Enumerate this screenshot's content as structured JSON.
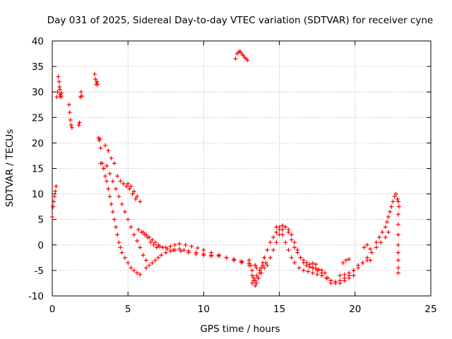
{
  "chart_data": {
    "type": "scatter",
    "title": "Day 031 of 2025, Sidereal Day-to-day VTEC variation (SDTVAR) for receiver cyne",
    "xlabel": "GPS time / hours",
    "ylabel": "SDTVAR / TECUs",
    "xlim": [
      0,
      25
    ],
    "ylim": [
      -10,
      40
    ],
    "xticks": [
      0,
      5,
      10,
      15,
      20,
      25
    ],
    "yticks": [
      -10,
      -5,
      0,
      5,
      10,
      15,
      20,
      25,
      30,
      35,
      40
    ],
    "grid": true,
    "marker": "+",
    "series": [
      {
        "name": "SDTVAR",
        "color": "#ff0000",
        "x": [
          0.0,
          0.05,
          0.1,
          0.15,
          0.2,
          0.25,
          0.3,
          0.35,
          0.4,
          0.45,
          0.48,
          0.5,
          0.52,
          0.55,
          0.58,
          0.6,
          1.1,
          1.15,
          1.2,
          1.25,
          1.3,
          1.75,
          1.8,
          1.85,
          1.9,
          1.95,
          2.8,
          2.85,
          2.9,
          2.95,
          3.0,
          3.05,
          3.1,
          3.15,
          3.2,
          3.3,
          3.4,
          3.5,
          3.6,
          3.7,
          3.8,
          3.9,
          4.0,
          4.1,
          4.2,
          4.3,
          4.4,
          4.5,
          4.6,
          4.8,
          5.0,
          5.2,
          5.4,
          5.6,
          5.8,
          3.2,
          3.4,
          3.6,
          3.8,
          4.0,
          4.2,
          4.4,
          4.6,
          4.8,
          5.0,
          5.2,
          5.4,
          5.6,
          5.8,
          6.0,
          6.2,
          3.5,
          3.7,
          3.9,
          4.1,
          4.3,
          4.5,
          4.7,
          4.9,
          5.1,
          5.3,
          5.5,
          5.7,
          5.9,
          6.1,
          6.3,
          6.5,
          6.7,
          6.9,
          7.1,
          7.3,
          5.0,
          5.2,
          5.4,
          5.6,
          5.8,
          6.0,
          6.2,
          6.4,
          6.6,
          6.8,
          7.0,
          7.3,
          7.6,
          8.0,
          8.5,
          9.0,
          9.5,
          10.0,
          10.5,
          11.0,
          11.5,
          12.0,
          12.5,
          13.0,
          13.5,
          6.2,
          6.4,
          6.6,
          6.8,
          7.0,
          7.2,
          7.5,
          7.8,
          8.1,
          8.4,
          8.7,
          9.0,
          9.5,
          10.0,
          10.5,
          11.0,
          11.5,
          12.0,
          12.5,
          13.0,
          13.4,
          7.5,
          7.8,
          8.1,
          8.4,
          8.8,
          9.2,
          9.6,
          10.0,
          10.5,
          11.0,
          11.5,
          12.0,
          12.5,
          13.0,
          13.4,
          12.1,
          12.2,
          12.3,
          12.4,
          12.5,
          12.6,
          12.7,
          12.8,
          12.9,
          13.0,
          13.1,
          13.2,
          13.2,
          13.3,
          13.4,
          13.5,
          13.6,
          13.7,
          13.8,
          13.9,
          14.0,
          13.3,
          13.5,
          13.7,
          13.9,
          14.1,
          13.2,
          13.4,
          13.6,
          13.8,
          14.0,
          14.0,
          14.2,
          14.4,
          14.6,
          14.8,
          15.0,
          15.2,
          15.4,
          15.6,
          15.8,
          16.0,
          16.2,
          16.4,
          16.6,
          16.8,
          17.0,
          17.2,
          17.4,
          14.2,
          14.4,
          14.6,
          14.8,
          15.0,
          15.2,
          15.4,
          15.6,
          15.8,
          16.0,
          16.2,
          16.4,
          16.6,
          16.8,
          17.0,
          17.2,
          17.4,
          17.6,
          17.8,
          18.0,
          18.2,
          18.4,
          14.8,
          15.0,
          15.2,
          15.4,
          15.6,
          15.8,
          16.0,
          16.3,
          16.6,
          16.9,
          17.2,
          17.5,
          17.8,
          18.1,
          18.4,
          18.7,
          19.0,
          19.3,
          19.6,
          19.9,
          17.2,
          17.5,
          17.8,
          18.1,
          18.4,
          18.7,
          19.0,
          19.3,
          19.6,
          19.9,
          20.2,
          20.5,
          20.8,
          21.0,
          19.0,
          19.3,
          19.6,
          19.9,
          20.2,
          20.5,
          20.8,
          21.1,
          21.4,
          21.7,
          22.0,
          22.2,
          21.4,
          21.6,
          21.8,
          22.0,
          22.1,
          22.2,
          22.3,
          22.4,
          22.5,
          22.6,
          22.7,
          22.8,
          22.85,
          22.9,
          22.85,
          22.85,
          22.85,
          22.85,
          22.85,
          22.85,
          22.85,
          22.85,
          19.2,
          19.4,
          19.6,
          20.6,
          20.8,
          21.0
        ],
        "y": [
          5.5,
          7.5,
          8.5,
          9.5,
          10.5,
          11.5,
          29.0,
          30.0,
          33.0,
          32.0,
          31.0,
          30.5,
          29.5,
          29.0,
          29.2,
          29.8,
          27.5,
          26.0,
          24.5,
          23.5,
          23.0,
          23.5,
          24.0,
          29.0,
          30.0,
          29.2,
          33.5,
          32.5,
          31.5,
          32.0,
          31.5,
          21.0,
          20.5,
          20.8,
          19.0,
          16.0,
          15.0,
          13.5,
          12.5,
          11.0,
          9.5,
          8.0,
          6.5,
          5.0,
          3.5,
          2.0,
          0.5,
          -0.5,
          -1.5,
          -2.5,
          -3.5,
          -4.5,
          -5.0,
          -5.5,
          -5.8,
          16.0,
          15.0,
          15.5,
          14.0,
          12.5,
          11.0,
          9.5,
          8.0,
          6.5,
          5.0,
          3.5,
          2.0,
          0.8,
          -0.5,
          -2.0,
          -3.0,
          19.5,
          18.5,
          17.0,
          16.0,
          13.5,
          12.5,
          12.0,
          11.5,
          11.0,
          10.0,
          9.0,
          3.0,
          2.5,
          2.0,
          1.5,
          0.5,
          0.0,
          -0.5,
          -0.3,
          -0.5,
          12.0,
          11.5,
          10.5,
          9.5,
          8.5,
          2.5,
          2.0,
          1.5,
          1.0,
          0.5,
          0.0,
          -0.5,
          -0.8,
          -1.0,
          -1.2,
          -1.5,
          -1.8,
          -2.0,
          -2.2,
          -2.0,
          -2.5,
          -3.0,
          -3.5,
          -4.0,
          -4.5,
          -4.5,
          -4.0,
          -3.5,
          -3.0,
          -2.5,
          -2.0,
          -1.5,
          -1.2,
          -1.0,
          -0.8,
          -1.0,
          -1.2,
          -1.5,
          -1.8,
          -2.0,
          -2.2,
          -2.5,
          -2.8,
          -3.2,
          -3.6,
          -4.0,
          -0.5,
          -0.3,
          0.0,
          0.2,
          0.0,
          -0.3,
          -0.6,
          -1.0,
          -1.5,
          -2.0,
          -2.5,
          -3.0,
          -3.3,
          -3.6,
          -4.0,
          36.5,
          37.5,
          37.8,
          38.0,
          37.6,
          37.2,
          36.8,
          36.5,
          36.2,
          -3.0,
          -4.0,
          -5.0,
          -6.0,
          -7.0,
          -8.0,
          -7.5,
          -6.5,
          -5.5,
          -4.5,
          -3.5,
          -2.5,
          -6.5,
          -6.0,
          -5.0,
          -4.0,
          -3.5,
          -7.5,
          -7.0,
          -6.5,
          -5.5,
          -4.5,
          -2.5,
          -1.0,
          0.5,
          1.5,
          2.5,
          3.5,
          3.8,
          3.5,
          2.5,
          1.0,
          -0.5,
          -1.5,
          -2.5,
          -3.0,
          -3.5,
          -3.8,
          -3.6,
          -3.8,
          -4.0,
          -2.5,
          -1.0,
          0.5,
          2.0,
          3.0,
          3.5,
          3.0,
          2.0,
          0.5,
          -1.0,
          -2.5,
          -3.5,
          -4.0,
          -4.3,
          -4.5,
          -4.6,
          -4.8,
          -5.0,
          -5.5,
          -6.5,
          -7.5,
          3.5,
          3.0,
          2.0,
          0.5,
          -1.0,
          -2.5,
          -3.5,
          -4.5,
          -5.0,
          -5.2,
          -5.5,
          -5.8,
          -6.0,
          -6.5,
          -7.0,
          -7.2,
          -7.5,
          -7.0,
          -6.5,
          -6.0,
          -4.5,
          -5.0,
          -5.5,
          -6.5,
          -7.0,
          -7.5,
          -7.0,
          -6.5,
          -6.0,
          -5.0,
          -4.0,
          -3.5,
          -3.0,
          -3.0,
          -6.0,
          -5.8,
          -5.5,
          -5.0,
          -4.5,
          -3.5,
          -2.5,
          -1.5,
          -0.5,
          0.5,
          1.5,
          2.5,
          0.5,
          1.5,
          2.5,
          3.5,
          4.5,
          5.5,
          6.5,
          7.5,
          8.5,
          9.5,
          10.0,
          9.0,
          8.5,
          7.5,
          6.0,
          4.0,
          2.0,
          0.0,
          -1.5,
          -3.0,
          -4.5,
          -5.5,
          -3.5,
          -3.0,
          -2.8,
          -0.5,
          0.0,
          -0.8
        ]
      }
    ]
  }
}
